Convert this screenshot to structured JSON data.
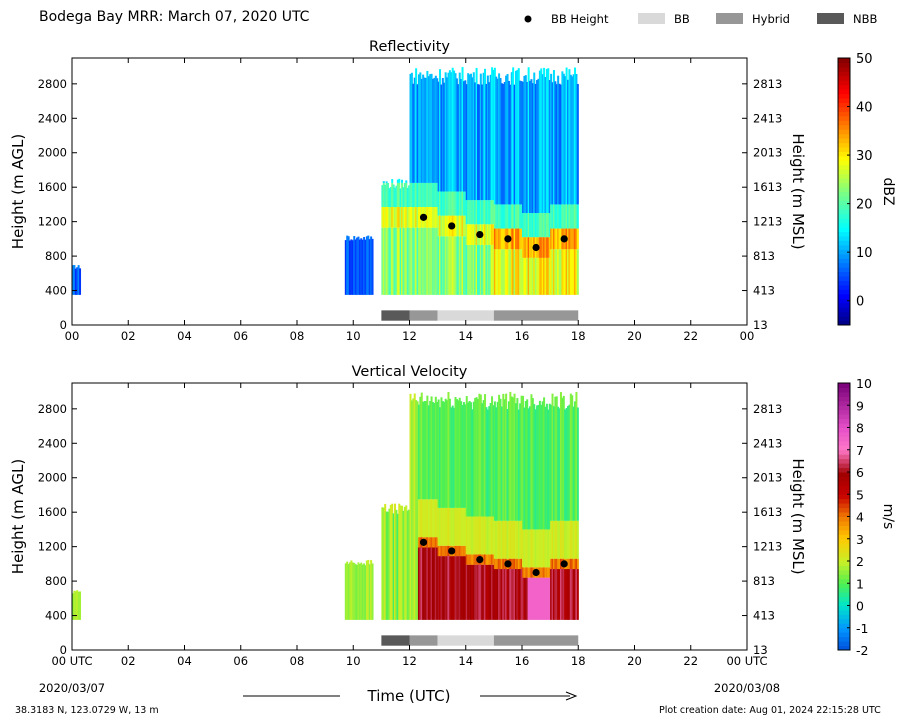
{
  "header": {
    "title": "Bodega Bay MRR:  March 07, 2020 UTC"
  },
  "legend": [
    {
      "label": "BB Height",
      "symbol": "dot",
      "color": "#000000"
    },
    {
      "label": "BB",
      "symbol": "box",
      "color": "#d9d9d9"
    },
    {
      "label": "Hybrid",
      "symbol": "box",
      "color": "#979797"
    },
    {
      "label": "NBB",
      "symbol": "box",
      "color": "#595959"
    }
  ],
  "footer": {
    "location": "38.3183 N, 123.0729 W, 13 m",
    "created": "Plot creation date: Aug 01, 2024 22:15:28 UTC",
    "date_start": "2020/03/07",
    "date_end": "2020/03/08",
    "xlabel": "Time (UTC)"
  },
  "chart_data": [
    {
      "type": "heatmap",
      "title": "Reflectivity",
      "ylabel": "Height (m AGL)",
      "ylabel_right": "Height (m MSL)",
      "xlim": [
        0,
        24
      ],
      "ylim": [
        0,
        3100
      ],
      "xticks": [
        "00",
        "02",
        "04",
        "06",
        "08",
        "10",
        "12",
        "14",
        "16",
        "18",
        "20",
        "22",
        "00"
      ],
      "yticks": [
        0,
        400,
        800,
        1200,
        1600,
        2000,
        2400,
        2800
      ],
      "yticks_right": [
        13,
        413,
        813,
        1213,
        1613,
        2013,
        2413,
        2813
      ],
      "colorbar": {
        "label": "dBZ",
        "min": -5,
        "max": 50,
        "ticks": [
          0,
          10,
          20,
          30,
          40,
          50
        ],
        "colormap": "jet"
      },
      "bb_height": [
        {
          "x": 12.5,
          "y": 1250
        },
        {
          "x": 13.5,
          "y": 1150
        },
        {
          "x": 14.5,
          "y": 1050
        },
        {
          "x": 15.5,
          "y": 1000
        },
        {
          "x": 16.5,
          "y": 900
        },
        {
          "x": 17.5,
          "y": 1000
        }
      ],
      "bb_type": [
        {
          "start": 11.0,
          "end": 12.0,
          "type": "NBB"
        },
        {
          "start": 12.0,
          "end": 13.0,
          "type": "Hybrid"
        },
        {
          "start": 13.0,
          "end": 15.0,
          "type": "BB"
        },
        {
          "start": 15.0,
          "end": 18.0,
          "type": "Hybrid"
        }
      ],
      "echo_tops": [
        {
          "start": 0.0,
          "end": 0.3,
          "top": 700
        },
        {
          "start": 9.7,
          "end": 10.7,
          "top": 1050
        },
        {
          "start": 11.0,
          "end": 12.0,
          "top": 1700
        },
        {
          "start": 12.0,
          "end": 18.0,
          "top": 3000
        }
      ]
    },
    {
      "type": "heatmap",
      "title": "Vertical Velocity",
      "ylabel": "Height (m AGL)",
      "ylabel_right": "Height (m MSL)",
      "xlim": [
        0,
        24
      ],
      "ylim": [
        0,
        3100
      ],
      "xticks": [
        "00 UTC",
        "02",
        "04",
        "06",
        "08",
        "10",
        "12",
        "14",
        "16",
        "18",
        "20",
        "22",
        "00 UTC"
      ],
      "yticks": [
        0,
        400,
        800,
        1200,
        1600,
        2000,
        2400,
        2800
      ],
      "yticks_right": [
        13,
        413,
        813,
        1213,
        1613,
        2013,
        2413,
        2813
      ],
      "colorbar": {
        "label": "m/s",
        "min": -2,
        "max": 10,
        "ticks": [
          -2,
          -1,
          0,
          1,
          2,
          3,
          4,
          5,
          6,
          7,
          8,
          9,
          10
        ],
        "colormap": "velocity"
      },
      "bb_height": [
        {
          "x": 12.5,
          "y": 1250
        },
        {
          "x": 13.5,
          "y": 1150
        },
        {
          "x": 14.5,
          "y": 1050
        },
        {
          "x": 15.5,
          "y": 1000
        },
        {
          "x": 16.5,
          "y": 900
        },
        {
          "x": 17.5,
          "y": 1000
        }
      ],
      "bb_type": [
        {
          "start": 11.0,
          "end": 12.0,
          "type": "NBB"
        },
        {
          "start": 12.0,
          "end": 13.0,
          "type": "Hybrid"
        },
        {
          "start": 13.0,
          "end": 15.0,
          "type": "BB"
        },
        {
          "start": 15.0,
          "end": 18.0,
          "type": "Hybrid"
        }
      ],
      "echo_tops": [
        {
          "start": 0.0,
          "end": 0.3,
          "top": 700
        },
        {
          "start": 9.7,
          "end": 10.7,
          "top": 1050
        },
        {
          "start": 11.0,
          "end": 12.0,
          "top": 1700
        },
        {
          "start": 12.0,
          "end": 18.0,
          "top": 3000
        }
      ]
    }
  ]
}
